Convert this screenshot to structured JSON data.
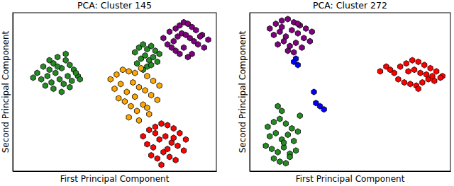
{
  "chart_data": [
    {
      "type": "scatter",
      "title": "PCA: Cluster 145",
      "x_label": "First Principal Component",
      "y_label": "Second Principal Component",
      "xlim": [
        0,
        100
      ],
      "ylim": [
        0,
        100
      ],
      "xticks": [],
      "yticks": [],
      "tick_labels": false,
      "marker": "hexagon",
      "series": [
        {
          "color": "#228b22",
          "x": [
            12,
            15,
            18,
            20,
            22,
            24,
            26,
            28,
            30,
            32,
            14,
            17,
            19,
            21,
            23,
            25,
            27,
            29,
            31,
            16,
            20,
            24,
            28,
            22,
            18,
            26,
            10,
            33
          ],
          "values": [
            62,
            66,
            70,
            68,
            72,
            65,
            70,
            67,
            64,
            60,
            58,
            60,
            56,
            62,
            58,
            55,
            60,
            57,
            62,
            54,
            52,
            50,
            53,
            66,
            64,
            74,
            59,
            58
          ]
        },
        {
          "color": "#228b22",
          "x": [
            60,
            62,
            64,
            66,
            68,
            70,
            72,
            63,
            65,
            67,
            69,
            71,
            61,
            66,
            64,
            68
          ],
          "values": [
            75,
            78,
            80,
            77,
            79,
            76,
            74,
            71,
            73,
            70,
            72,
            69,
            68,
            66,
            64,
            67
          ]
        },
        {
          "color": "#800080",
          "x": [
            74,
            77,
            80,
            82,
            84,
            86,
            88,
            90,
            93,
            96,
            76,
            79,
            81,
            83,
            85,
            87,
            89,
            91,
            94,
            80,
            84,
            88,
            86,
            82,
            78,
            92
          ],
          "values": [
            84,
            88,
            90,
            92,
            94,
            93,
            91,
            89,
            86,
            83,
            80,
            82,
            85,
            87,
            86,
            84,
            82,
            80,
            78,
            76,
            78,
            74,
            72,
            74,
            78,
            85
          ]
        },
        {
          "color": "#ffa500",
          "x": [
            48,
            51,
            54,
            57,
            60,
            63,
            66,
            69,
            72,
            50,
            53,
            56,
            59,
            62,
            65,
            68,
            71,
            55,
            58,
            61,
            64,
            67,
            52,
            57,
            62,
            66,
            60
          ],
          "values": [
            58,
            61,
            64,
            63,
            62,
            65,
            60,
            57,
            54,
            52,
            55,
            50,
            56,
            53,
            51,
            48,
            45,
            44,
            41,
            38,
            42,
            36,
            46,
            34,
            32,
            40,
            47
          ]
        },
        {
          "color": "#ff0000",
          "x": [
            64,
            67,
            70,
            73,
            76,
            79,
            82,
            85,
            66,
            69,
            72,
            75,
            78,
            81,
            84,
            68,
            71,
            74,
            77,
            80,
            73,
            76,
            70,
            79
          ],
          "values": [
            22,
            26,
            28,
            30,
            29,
            27,
            24,
            20,
            17,
            15,
            20,
            22,
            18,
            16,
            13,
            10,
            8,
            12,
            9,
            7,
            4,
            14,
            24,
            21
          ]
        }
      ]
    },
    {
      "type": "scatter",
      "title": "PCA: Cluster 272",
      "x_label": "First Principal Component",
      "y_label": "Second Principal Component",
      "xlim": [
        0,
        100
      ],
      "ylim": [
        0,
        100
      ],
      "xticks": [],
      "yticks": [],
      "tick_labels": false,
      "marker": "hexagon",
      "series": [
        {
          "color": "#800080",
          "x": [
            10,
            13,
            16,
            19,
            22,
            25,
            28,
            31,
            12,
            15,
            18,
            21,
            24,
            27,
            30,
            14,
            17,
            20,
            23,
            26,
            19,
            22,
            16,
            24
          ],
          "values": [
            90,
            93,
            95,
            96,
            94,
            92,
            90,
            88,
            86,
            88,
            85,
            89,
            87,
            84,
            82,
            80,
            82,
            79,
            81,
            78,
            76,
            75,
            91,
            93
          ]
        },
        {
          "color": "#0000ff",
          "x": [
            23,
            24,
            22,
            32,
            35,
            37,
            33
          ],
          "values": [
            71,
            67,
            69,
            50,
            41,
            39,
            43
          ]
        },
        {
          "color": "#228b22",
          "x": [
            9,
            12,
            15,
            18,
            21,
            24,
            10,
            13,
            16,
            19,
            22,
            8,
            11,
            14,
            17,
            20,
            23,
            12,
            15,
            18,
            16,
            14,
            20,
            17,
            25
          ],
          "values": [
            28,
            31,
            33,
            30,
            27,
            25,
            22,
            24,
            20,
            23,
            19,
            16,
            14,
            12,
            15,
            11,
            13,
            8,
            6,
            5,
            38,
            41,
            9,
            18,
            35
          ]
        },
        {
          "color": "#ff0000",
          "x": [
            72,
            75,
            78,
            81,
            84,
            87,
            90,
            93,
            96,
            74,
            77,
            80,
            83,
            86,
            89,
            92,
            95,
            79,
            82,
            85,
            88,
            91,
            65,
            68,
            70,
            84
          ],
          "values": [
            62,
            66,
            68,
            70,
            69,
            67,
            65,
            63,
            60,
            58,
            56,
            55,
            54,
            56,
            58,
            57,
            59,
            63,
            64,
            62,
            61,
            60,
            63,
            66,
            64,
            52
          ]
        }
      ]
    }
  ]
}
